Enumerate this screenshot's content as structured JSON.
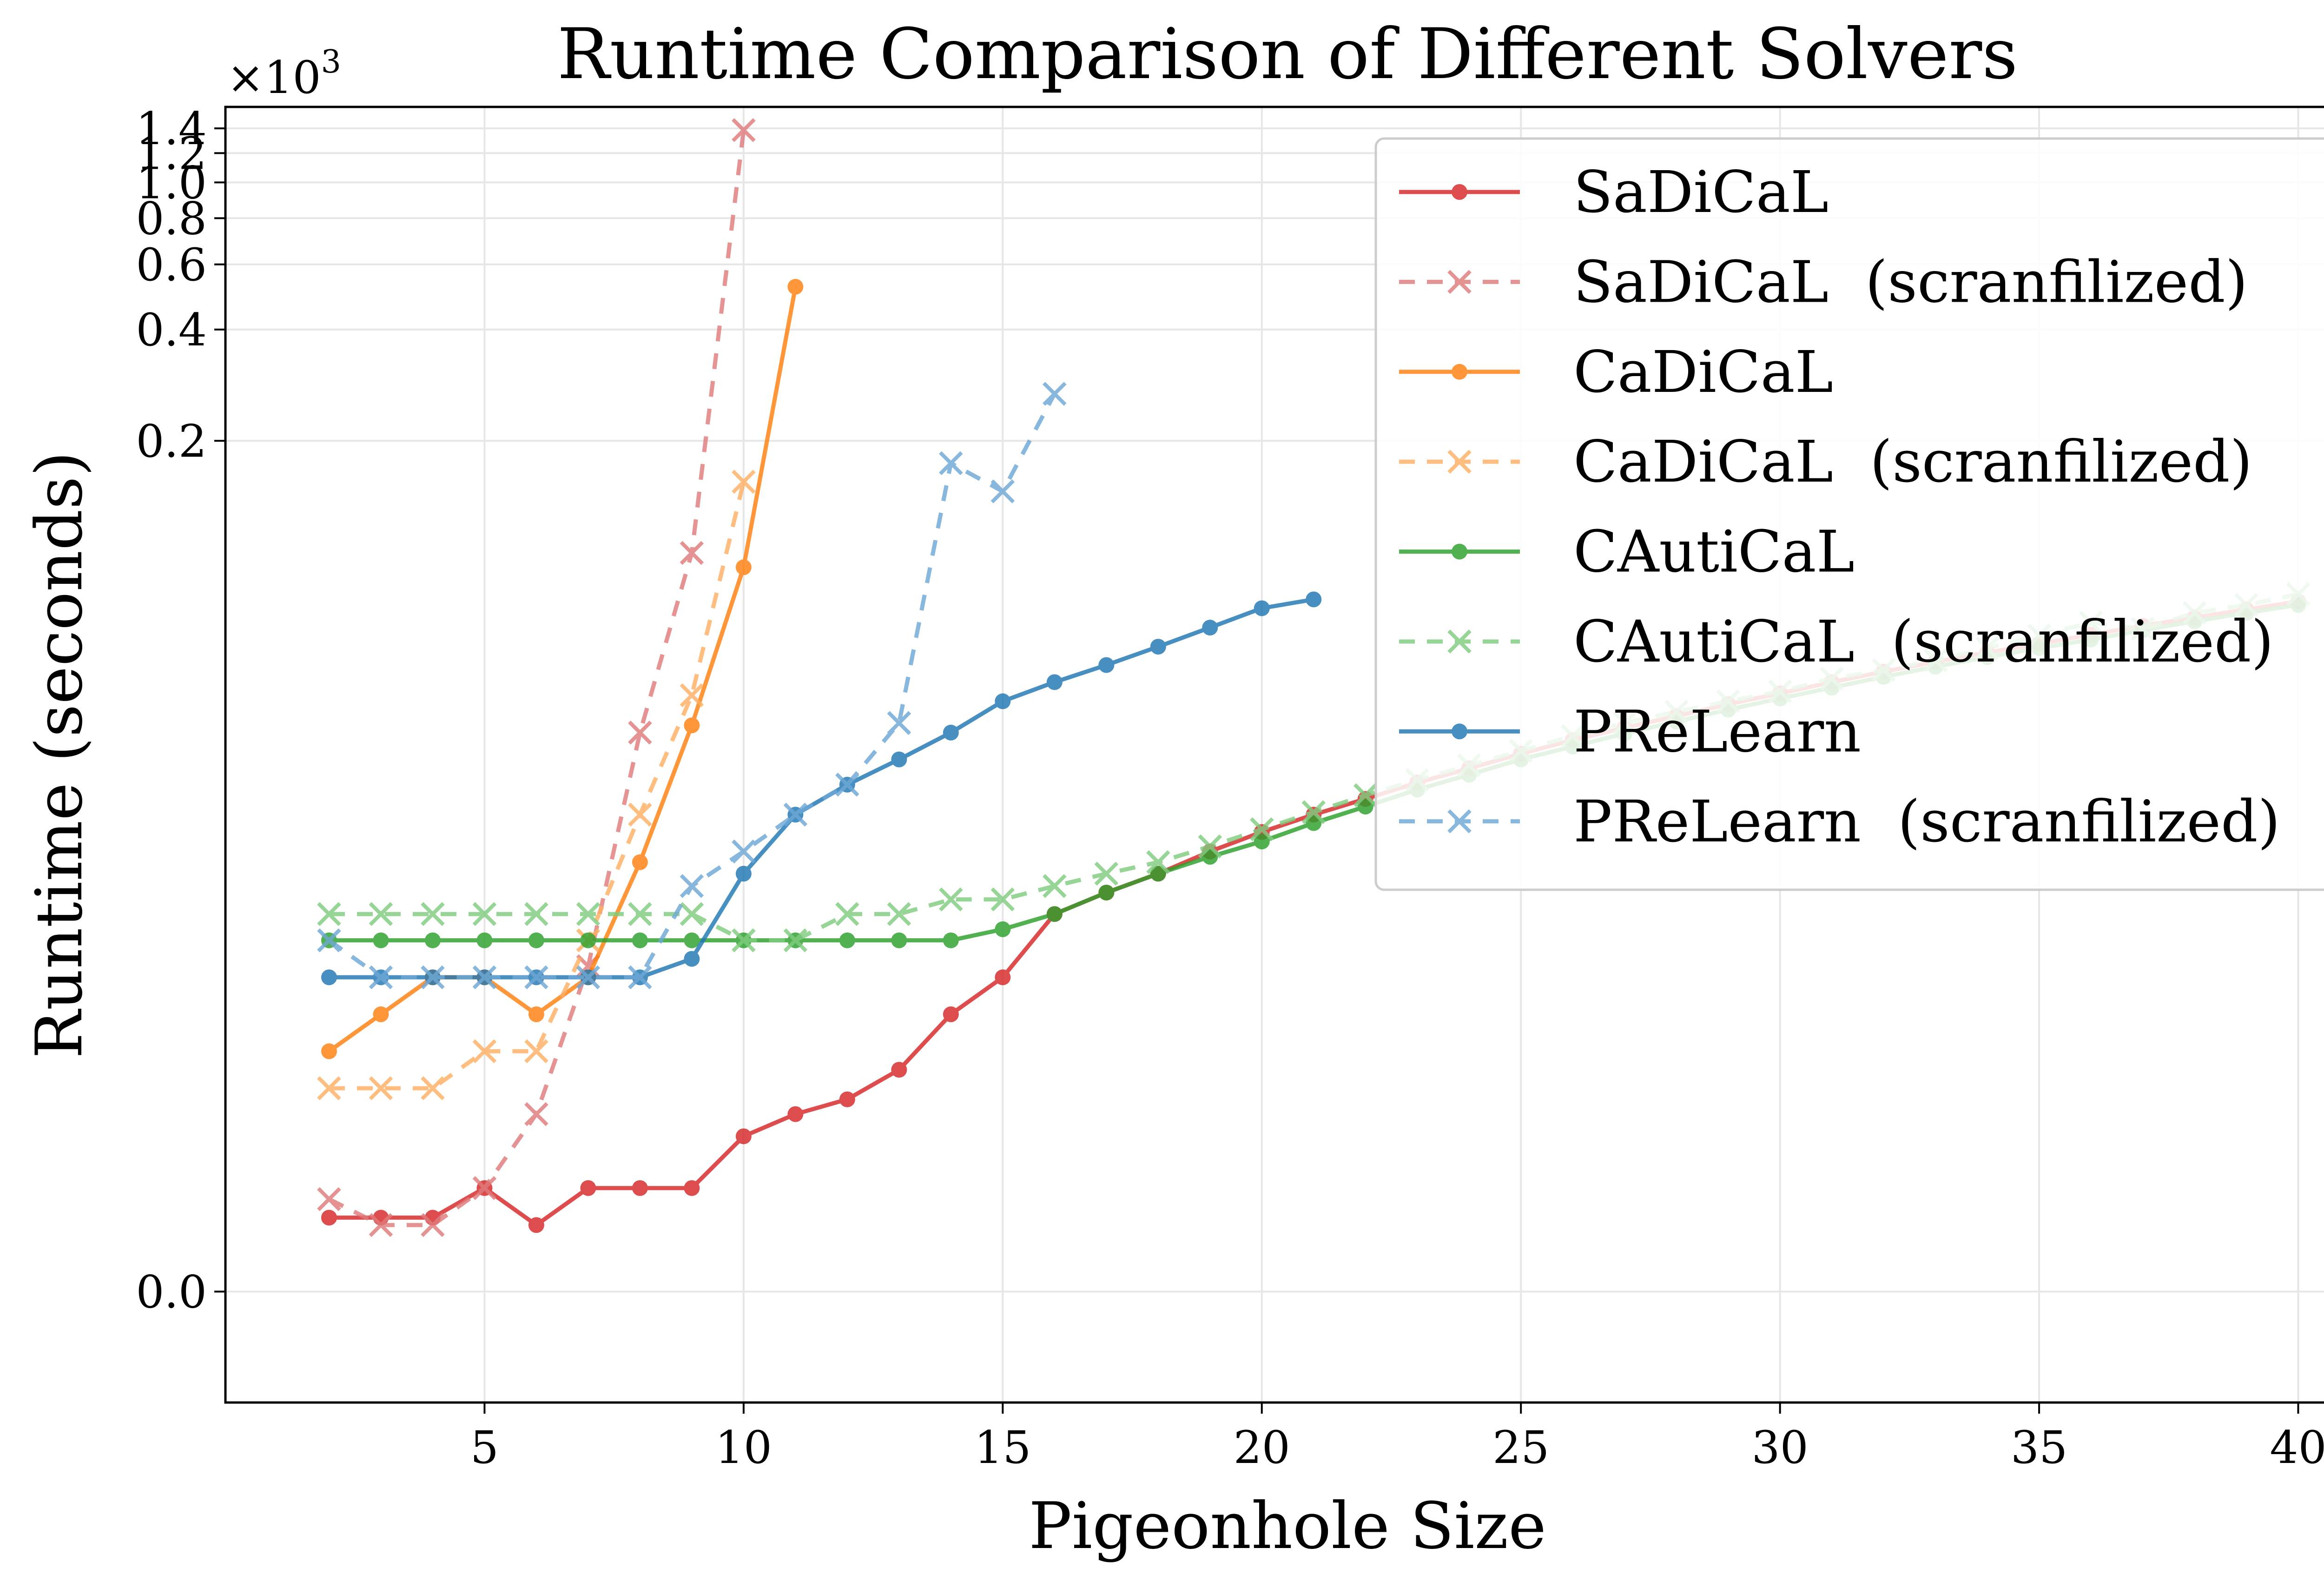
{
  "chart_data": {
    "type": "line",
    "title": "Runtime Comparison of Different Solvers",
    "xlabel": "Pigeonhole Size",
    "ylabel": "Runtime (seconds)",
    "y_multiplier": "×10",
    "y_multiplier_exp": "3",
    "y_scale": "symlog",
    "xlim": [
      0,
      41
    ],
    "ylim": [
      -0.003,
      1.6
    ],
    "x_ticks": [
      5,
      10,
      15,
      20,
      25,
      30,
      35,
      40
    ],
    "y_ticks": [
      0.0,
      0.2,
      0.4,
      0.6,
      0.8,
      1.0,
      1.2,
      1.4
    ],
    "y_tick_labels": [
      "0.0",
      "0.2",
      "0.4",
      "0.6",
      "0.8",
      "1.0",
      "1.2",
      "1.4"
    ],
    "grid": true,
    "legend_position": "top-right",
    "series": [
      {
        "name": "SaDiCaL",
        "color": "#d62728",
        "style": "solid",
        "marker": "circle",
        "x": [
          2,
          3,
          4,
          5,
          6,
          7,
          8,
          9,
          10,
          11,
          12,
          13,
          14,
          15,
          16,
          17,
          18,
          19,
          20,
          21,
          22,
          23,
          24,
          25,
          26,
          27,
          28,
          29,
          30,
          31,
          32,
          33,
          34,
          35,
          36,
          37,
          38,
          39,
          40
        ],
        "y": [
          0.002,
          0.002,
          0.002,
          0.0028,
          0.0018,
          0.0028,
          0.0028,
          0.0028,
          0.0042,
          0.0048,
          0.0052,
          0.006,
          0.0075,
          0.0085,
          0.0105,
          0.012,
          0.0135,
          0.0155,
          0.0175,
          0.0195,
          0.0215,
          0.0238,
          0.026,
          0.0285,
          0.031,
          0.0335,
          0.036,
          0.0388,
          0.0415,
          0.0445,
          0.0475,
          0.0505,
          0.0535,
          0.0565,
          0.0598,
          0.0632,
          0.0665,
          0.07,
          0.0735
        ]
      },
      {
        "name": "SaDiCaL  (scranfilized)",
        "color": "#e07b7c",
        "style": "dashed",
        "marker": "x",
        "x": [
          2,
          3,
          4,
          5,
          6,
          7,
          8,
          9,
          10
        ],
        "y": [
          0.0025,
          0.0018,
          0.0018,
          0.0028,
          0.0048,
          0.0088,
          0.0325,
          0.0995,
          1.385
        ]
      },
      {
        "name": "CaDiCaL",
        "color": "#ff7f0e",
        "style": "solid",
        "marker": "circle",
        "x": [
          2,
          3,
          4,
          5,
          6,
          7,
          8,
          9,
          10,
          11
        ],
        "y": [
          0.0065,
          0.0075,
          0.0085,
          0.0085,
          0.0075,
          0.0085,
          0.0145,
          0.034,
          0.091,
          0.522
        ]
      },
      {
        "name": "CaDiCaL  (scranfilized)",
        "color": "#ffb063",
        "style": "dashed",
        "marker": "x",
        "x": [
          2,
          3,
          4,
          5,
          6,
          7,
          8,
          9,
          10
        ],
        "y": [
          0.0055,
          0.0055,
          0.0055,
          0.0065,
          0.0065,
          0.0095,
          0.0195,
          0.041,
          0.155
        ]
      },
      {
        "name": "CAutiCaL",
        "color": "#2ca02c",
        "style": "solid",
        "marker": "circle",
        "x": [
          2,
          3,
          4,
          5,
          6,
          7,
          8,
          9,
          10,
          11,
          12,
          13,
          14,
          15,
          16,
          17,
          18,
          19,
          20,
          21,
          22,
          23,
          24,
          25,
          26,
          27,
          28,
          29,
          30,
          31,
          32,
          33,
          34,
          35,
          36,
          37,
          38,
          39,
          40
        ],
        "y": [
          0.0095,
          0.0095,
          0.0095,
          0.0095,
          0.0095,
          0.0095,
          0.0095,
          0.0095,
          0.0095,
          0.0095,
          0.0095,
          0.0095,
          0.0095,
          0.0098,
          0.0105,
          0.012,
          0.0135,
          0.015,
          0.0165,
          0.0185,
          0.0205,
          0.0228,
          0.025,
          0.0275,
          0.0298,
          0.0323,
          0.0348,
          0.0375,
          0.0402,
          0.043,
          0.046,
          0.049,
          0.052,
          0.055,
          0.058,
          0.0615,
          0.065,
          0.0685,
          0.072
        ]
      },
      {
        "name": "CAutiCaL  (scranfilized)",
        "color": "#7fcc7f",
        "style": "dashed",
        "marker": "x",
        "x": [
          2,
          3,
          4,
          5,
          6,
          7,
          8,
          9,
          10,
          11,
          12,
          13,
          14,
          15,
          16,
          17,
          18,
          19,
          20,
          21,
          22,
          23,
          24,
          25,
          26,
          27,
          28,
          29,
          30,
          31,
          32,
          33,
          34,
          35,
          36,
          37,
          38,
          39,
          40
        ],
        "y": [
          0.0105,
          0.0105,
          0.0105,
          0.0105,
          0.0105,
          0.0105,
          0.0105,
          0.0105,
          0.0095,
          0.0095,
          0.0105,
          0.0105,
          0.0115,
          0.0115,
          0.0125,
          0.0135,
          0.0145,
          0.016,
          0.0178,
          0.0198,
          0.022,
          0.0242,
          0.0265,
          0.029,
          0.0318,
          0.0345,
          0.037,
          0.0395,
          0.042,
          0.0455,
          0.048,
          0.051,
          0.055,
          0.0595,
          0.0645,
          0.062,
          0.0685,
          0.072,
          0.077
        ]
      },
      {
        "name": "PReLearn",
        "color": "#1f77b4",
        "style": "solid",
        "marker": "circle",
        "x": [
          2,
          3,
          4,
          5,
          6,
          7,
          8,
          9,
          10,
          11,
          12,
          13,
          14,
          15,
          16,
          17,
          18,
          19,
          20,
          21
        ],
        "y": [
          0.0085,
          0.0085,
          0.0085,
          0.0085,
          0.0085,
          0.0085,
          0.0085,
          0.009,
          0.0135,
          0.0195,
          0.0235,
          0.0275,
          0.0325,
          0.0395,
          0.0445,
          0.0495,
          0.0555,
          0.0625,
          0.0705,
          0.0745
        ]
      },
      {
        "name": "PReLearn  (scranfilized)",
        "color": "#6fa8d6",
        "style": "dashed",
        "marker": "x",
        "x": [
          2,
          3,
          4,
          5,
          6,
          7,
          8,
          9,
          10,
          11,
          12,
          13,
          14,
          15,
          16
        ],
        "y": [
          0.0095,
          0.0085,
          0.0085,
          0.0085,
          0.0085,
          0.0085,
          0.0085,
          0.0125,
          0.0155,
          0.0195,
          0.0235,
          0.0345,
          0.174,
          0.146,
          0.268
        ]
      }
    ]
  }
}
